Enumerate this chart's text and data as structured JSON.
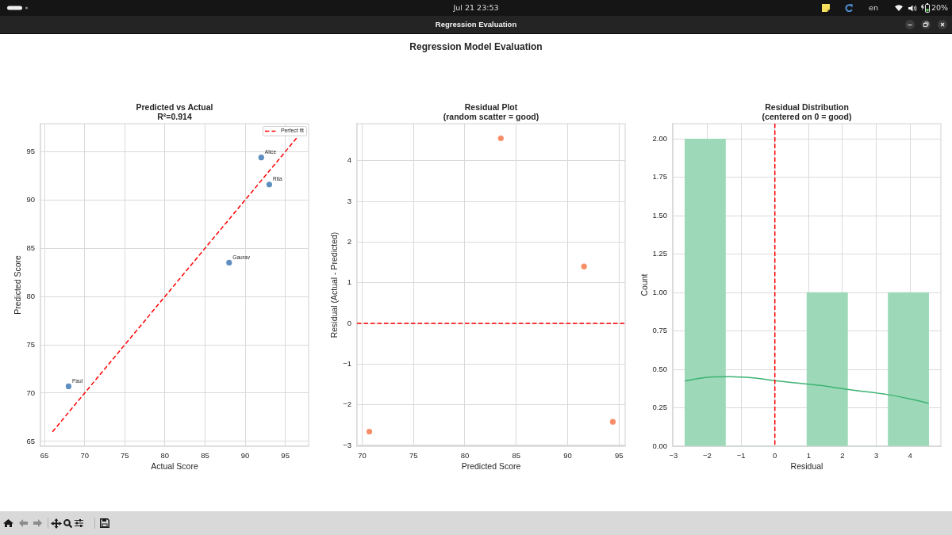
{
  "chart_data": [
    {
      "type": "other",
      "title": "Regression Model Evaluation",
      "annotations": [
        "Jul 21 23:53",
        "Regression Evaluation",
        "en",
        "20%"
      ]
    },
    {
      "type": "scatter",
      "title": "Predicted vs Actual",
      "subtitle": "R²=0.914",
      "xlabel": "Actual Score",
      "ylabel": "Predicted Score",
      "series": [
        {
          "type": "scatter",
          "color": "#5f8fc1",
          "marker": "circle",
          "x": [
            92,
            93,
            88,
            68
          ],
          "values": [
            94.4,
            91.6,
            83.5,
            70.7
          ]
        },
        {
          "type": "line",
          "name": "Perfect fit",
          "color": "#ff0000",
          "line_style": "dashed",
          "x": [
            66,
            96.4
          ],
          "values": [
            66,
            96.4
          ]
        }
      ],
      "annotations": [
        {
          "text": "Alice",
          "x": 92,
          "y": 94.4
        },
        {
          "text": "Rita",
          "x": 93,
          "y": 91.6
        },
        {
          "text": "Gaurav",
          "x": 88,
          "y": 83.5
        },
        {
          "text": "Paul",
          "x": 68,
          "y": 70.7
        }
      ],
      "xlim": [
        64.5,
        97.9
      ],
      "ylim": [
        64.5,
        97.9
      ],
      "xticks": [
        65,
        70,
        75,
        80,
        85,
        90,
        95
      ],
      "yticks": [
        65,
        70,
        75,
        80,
        85,
        90,
        95
      ],
      "grid": true,
      "legend": "top right"
    },
    {
      "type": "scatter",
      "title": "Residual Plot",
      "subtitle": "(random scatter = good)",
      "xlabel": "Predicted Score",
      "ylabel": "Residual (Actual - Predicted)",
      "x": [
        94.4,
        91.6,
        83.5,
        70.7
      ],
      "values": [
        -2.42,
        1.4,
        4.55,
        -2.66
      ],
      "color": "#f88e68",
      "marker": "circle",
      "xlim": [
        69.5,
        95.6
      ],
      "ylim": [
        -3.02,
        4.91
      ],
      "xticks": [
        70,
        75,
        80,
        85,
        90,
        95
      ],
      "yticks": [
        {
          "value": -3,
          "label": "−3"
        },
        {
          "value": -2,
          "label": "−2"
        },
        {
          "value": -1,
          "label": "−1"
        },
        0,
        1,
        2,
        3,
        4
      ],
      "ref_lines": [
        {
          "axis": "y",
          "value": 0,
          "color": "#ff0000",
          "line_style": "dashed"
        }
      ],
      "grid": true
    },
    {
      "type": "histogram",
      "title": "Residual Distribution",
      "subtitle": "(centered on 0 = good)",
      "xlabel": "Residual",
      "ylabel": "Count",
      "series": [
        {
          "type": "histogram",
          "color": "#9dd9b8",
          "bins": [
            -2.66,
            -1.46,
            -0.26,
            0.95,
            2.15,
            3.35,
            4.55
          ],
          "values": [
            2,
            0,
            0,
            1,
            0,
            1
          ]
        },
        {
          "type": "line",
          "color": "#3cb371",
          "x": [
            -2.66,
            -2.05,
            -1.35,
            -0.64,
            0,
            0.95,
            1.54,
            2.14,
            3.35,
            3.96,
            4.55
          ],
          "values": [
            0.425,
            0.448,
            0.453,
            0.445,
            0.427,
            0.405,
            0.39,
            0.37,
            0.336,
            0.31,
            0.28
          ]
        }
      ],
      "xlim": [
        -3.02,
        4.91
      ],
      "ylim": [
        0,
        2.1
      ],
      "xticks": [
        {
          "value": -3,
          "label": "−3"
        },
        {
          "value": -2,
          "label": "−2"
        },
        {
          "value": -1,
          "label": "−1"
        },
        0,
        1,
        2,
        3,
        4
      ],
      "yticks": [
        {
          "value": 0,
          "label": "0.00"
        },
        0.25,
        {
          "value": 0.5,
          "label": "0.50"
        },
        0.75,
        {
          "value": 1,
          "label": "1.00"
        },
        1.25,
        {
          "value": 1.5,
          "label": "1.50"
        },
        1.75,
        {
          "value": 2,
          "label": "2.00"
        }
      ],
      "ref_lines": [
        {
          "axis": "x",
          "value": 0,
          "color": "#ff0000",
          "line_style": "dashed"
        }
      ],
      "grid": true
    }
  ]
}
